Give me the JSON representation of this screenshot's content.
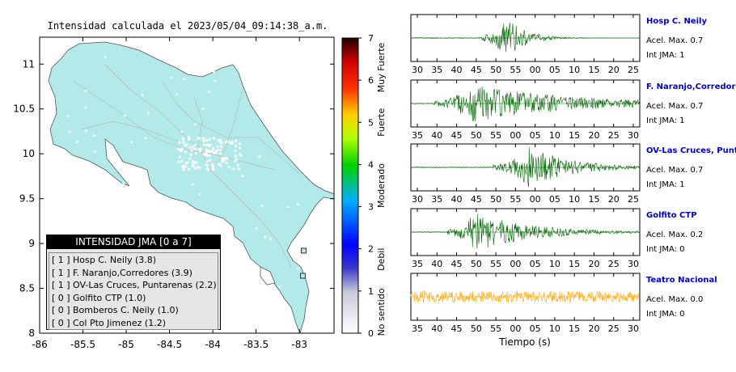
{
  "chart_data": [
    {
      "type": "map",
      "title": "Intensidad calculada el 2023/05/04_09:14:38_a.m.",
      "xlim": [
        -86,
        -82.6
      ],
      "ylim": [
        8,
        11.3
      ],
      "xticks": [
        "-86",
        "-85.5",
        "-85",
        "-84.5",
        "-84",
        "-83.5",
        "-83"
      ],
      "xtick_values": [
        -86,
        -85.5,
        -85,
        -84.5,
        -84,
        -83.5,
        -83
      ],
      "yticks": [
        "8",
        "8.5",
        "9",
        "9.5",
        "10",
        "10.5",
        "11"
      ],
      "ytick_values": [
        8,
        8.5,
        9,
        9.5,
        10,
        10.5,
        11
      ],
      "land_color": "#b2eaea",
      "stations": [
        {
          "lon": -82.95,
          "lat": 8.92
        },
        {
          "lon": -82.96,
          "lat": 8.64
        }
      ],
      "legend": {
        "title": "INTENSIDAD JMA [0 a 7]",
        "entries": [
          {
            "level": "[ 1 ]",
            "name": "Hosp C. Neily (3.8)"
          },
          {
            "level": "[ 1 ]",
            "name": "F. Naranjo,Corredores (3.9)"
          },
          {
            "level": "[ 1 ]",
            "name": "OV-Las Cruces, Puntarenas (2.2)"
          },
          {
            "level": "[ 0 ]",
            "name": "Golfito CTP (1.0)"
          },
          {
            "level": "[ 0 ]",
            "name": "Bomberos C. Neily (1.0)"
          },
          {
            "level": "[ 0 ]",
            "name": "Col Pto Jimenez (1.2)"
          }
        ]
      },
      "colorbar": {
        "range": [
          0,
          7
        ],
        "ticks": [
          "0",
          "1",
          "2",
          "3",
          "4",
          "5",
          "6",
          "7"
        ],
        "labels": [
          "No sentido",
          "Debil",
          "Moderado",
          "Fuerte",
          "Muy Fuerte"
        ]
      }
    },
    {
      "type": "line",
      "xlabel": "Tiempo (s)",
      "series": [
        {
          "name": "Hosp C. Neily",
          "acel": "Acel. Max. 0.7",
          "int": "Int JMA: 1",
          "color": "#006400",
          "ticks": [
            "30",
            "35",
            "40",
            "45",
            "50",
            "55",
            "00",
            "05",
            "10",
            "15",
            "20",
            "25"
          ],
          "onset": 0.31,
          "peak": 0.42,
          "decay": 0.08,
          "amp": 1.0
        },
        {
          "name": "F. Naranjo,Corredores",
          "acel": "Acel. Max. 0.7",
          "int": "Int JMA: 1",
          "color": "#006400",
          "ticks": [
            "35",
            "40",
            "45",
            "50",
            "55",
            "00",
            "05",
            "10",
            "15",
            "20",
            "25",
            "30"
          ],
          "onset": 0.1,
          "peak": 0.27,
          "decay": 0.45,
          "amp": 0.85
        },
        {
          "name": "OV-Las Cruces, Puntar",
          "acel": "Acel. Max. 0.7",
          "int": "Int JMA: 1",
          "color": "#006400",
          "ticks": [
            "30",
            "35",
            "40",
            "45",
            "50",
            "55",
            "00",
            "05",
            "10",
            "15",
            "20",
            "25"
          ],
          "onset": 0.36,
          "peak": 0.52,
          "decay": 0.18,
          "amp": 0.95
        },
        {
          "name": "Golfito CTP",
          "acel": "Acel. Max. 0.2",
          "int": "Int JMA: 0",
          "color": "#006400",
          "ticks": [
            "35",
            "40",
            "45",
            "50",
            "55",
            "00",
            "05",
            "10",
            "15",
            "20",
            "25",
            "30"
          ],
          "onset": 0.16,
          "peak": 0.28,
          "decay": 0.25,
          "amp": 0.9
        },
        {
          "name": "Teatro Nacional",
          "acel": "Acel. Max. 0.0",
          "int": "Int JMA: 0",
          "color": "#ffa500",
          "ticks": [
            "35",
            "40",
            "45",
            "50",
            "55",
            "00",
            "05",
            "10",
            "15",
            "20",
            "25",
            "30"
          ],
          "onset": 0.0,
          "peak": 0.5,
          "decay": 2.0,
          "amp": 0.6
        }
      ]
    }
  ]
}
